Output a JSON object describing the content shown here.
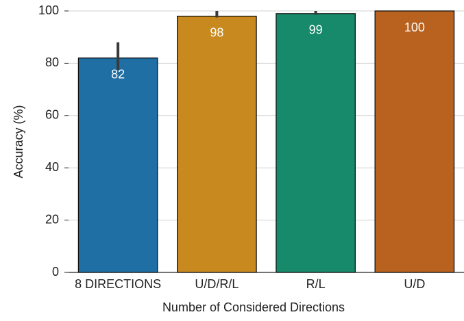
{
  "chart_data": {
    "type": "bar",
    "x_label": "Number of Considered Directions",
    "y_label": "Accuracy (%)",
    "categories": [
      "8 DIRECTIONS",
      "U/D/R/L",
      "R/L",
      "U/D"
    ],
    "values": [
      82,
      98,
      99,
      100
    ],
    "error_low": [
      77.5,
      97.5,
      98.5,
      100
    ],
    "error_high": [
      88,
      100,
      100,
      100
    ],
    "colors": [
      "#1f6fa5",
      "#c88a1f",
      "#168a6a",
      "#b9611e"
    ],
    "ylim": [
      0,
      100
    ],
    "yticks": [
      0,
      20,
      40,
      60,
      80,
      100
    ],
    "grid": true
  }
}
